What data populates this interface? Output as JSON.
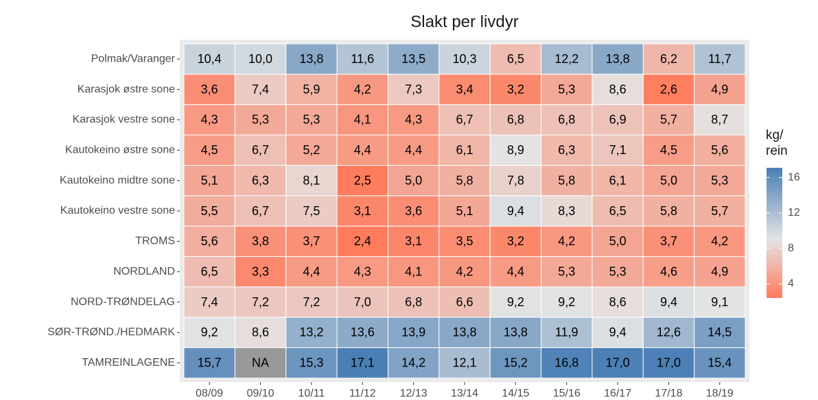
{
  "chart_data": {
    "type": "heatmap",
    "title": "Slakt per livdyr",
    "legend_title": [
      "kg/",
      "rein"
    ],
    "x": [
      "08/09",
      "09/10",
      "10/11",
      "11/12",
      "12/13",
      "13/14",
      "14/15",
      "15/16",
      "16/17",
      "17/18",
      "18/19"
    ],
    "y": [
      "Polmak/Varanger",
      "Karasjok østre sone",
      "Karasjok vestre sone",
      "Kautokeino østre sone",
      "Kautokeino midtre sone",
      "Kautokeino vestre sone",
      "TROMS",
      "NORDLAND",
      "NORD-TRØNDELAG",
      "SØR-TRØND./HEDMARK",
      "TAMREINLAGENE"
    ],
    "values": [
      [
        10.4,
        10.0,
        13.8,
        11.6,
        13.5,
        10.3,
        6.5,
        12.2,
        13.8,
        6.2,
        11.7
      ],
      [
        3.6,
        7.4,
        5.9,
        4.2,
        7.3,
        3.4,
        3.2,
        5.3,
        8.6,
        2.6,
        4.9
      ],
      [
        4.3,
        5.3,
        5.3,
        4.1,
        4.3,
        6.7,
        6.8,
        6.8,
        6.9,
        5.7,
        8.7
      ],
      [
        4.5,
        6.7,
        5.2,
        4.4,
        4.4,
        6.1,
        8.9,
        6.3,
        7.1,
        4.5,
        5.6
      ],
      [
        5.1,
        6.3,
        8.1,
        2.5,
        5.0,
        5.8,
        7.8,
        5.8,
        6.1,
        5.0,
        5.3
      ],
      [
        5.5,
        6.7,
        7.5,
        3.1,
        3.6,
        5.1,
        9.4,
        8.3,
        6.5,
        5.8,
        5.7
      ],
      [
        5.6,
        3.8,
        3.7,
        2.4,
        3.1,
        3.5,
        3.2,
        4.2,
        5.0,
        3.7,
        4.2
      ],
      [
        6.5,
        3.3,
        4.4,
        4.3,
        4.1,
        4.2,
        4.4,
        5.3,
        5.3,
        4.6,
        4.9
      ],
      [
        7.4,
        7.2,
        7.2,
        7.0,
        6.8,
        6.6,
        9.2,
        9.2,
        8.6,
        9.4,
        9.1
      ],
      [
        9.2,
        8.6,
        13.2,
        13.6,
        13.9,
        13.8,
        13.8,
        11.9,
        9.4,
        12.6,
        14.5
      ],
      [
        15.7,
        null,
        15.3,
        17.1,
        14.2,
        12.1,
        15.2,
        16.8,
        17.0,
        17.0,
        15.4
      ]
    ],
    "value_labels": [
      [
        "10,4",
        "10,0",
        "13,8",
        "11,6",
        "13,5",
        "10,3",
        "6,5",
        "12,2",
        "13,8",
        "6,2",
        "11,7"
      ],
      [
        "3,6",
        "7,4",
        "5,9",
        "4,2",
        "7,3",
        "3,4",
        "3,2",
        "5,3",
        "8,6",
        "2,6",
        "4,9"
      ],
      [
        "4,3",
        "5,3",
        "5,3",
        "4,1",
        "4,3",
        "6,7",
        "6,8",
        "6,8",
        "6,9",
        "5,7",
        "8,7"
      ],
      [
        "4,5",
        "6,7",
        "5,2",
        "4,4",
        "4,4",
        "6,1",
        "8,9",
        "6,3",
        "7,1",
        "4,5",
        "5,6"
      ],
      [
        "5,1",
        "6,3",
        "8,1",
        "2,5",
        "5,0",
        "5,8",
        "7,8",
        "5,8",
        "6,1",
        "5,0",
        "5,3"
      ],
      [
        "5,5",
        "6,7",
        "7,5",
        "3,1",
        "3,6",
        "5,1",
        "9,4",
        "8,3",
        "6,5",
        "5,8",
        "5,7"
      ],
      [
        "5,6",
        "3,8",
        "3,7",
        "2,4",
        "3,1",
        "3,5",
        "3,2",
        "4,2",
        "5,0",
        "3,7",
        "4,2"
      ],
      [
        "6,5",
        "3,3",
        "4,4",
        "4,3",
        "4,1",
        "4,2",
        "4,4",
        "5,3",
        "5,3",
        "4,6",
        "4,9"
      ],
      [
        "7,4",
        "7,2",
        "7,2",
        "7,0",
        "6,8",
        "6,6",
        "9,2",
        "9,2",
        "8,6",
        "9,4",
        "9,1"
      ],
      [
        "9,2",
        "8,6",
        "13,2",
        "13,6",
        "13,9",
        "13,8",
        "13,8",
        "11,9",
        "9,4",
        "12,6",
        "14,5"
      ],
      [
        "15,7",
        "NA",
        "15,3",
        "17,1",
        "14,2",
        "12,1",
        "15,2",
        "16,8",
        "17,0",
        "17,0",
        "15,4"
      ]
    ],
    "zlim": [
      2.4,
      17.1
    ],
    "zticks": [
      4,
      8,
      12,
      16
    ],
    "colors": {
      "low": "#ff7b5c",
      "mid": "#e4e4e4",
      "high": "#4a7fb5",
      "midpoint": 9
    },
    "na_color": "#999999",
    "panel_background": "#ebebeb"
  }
}
